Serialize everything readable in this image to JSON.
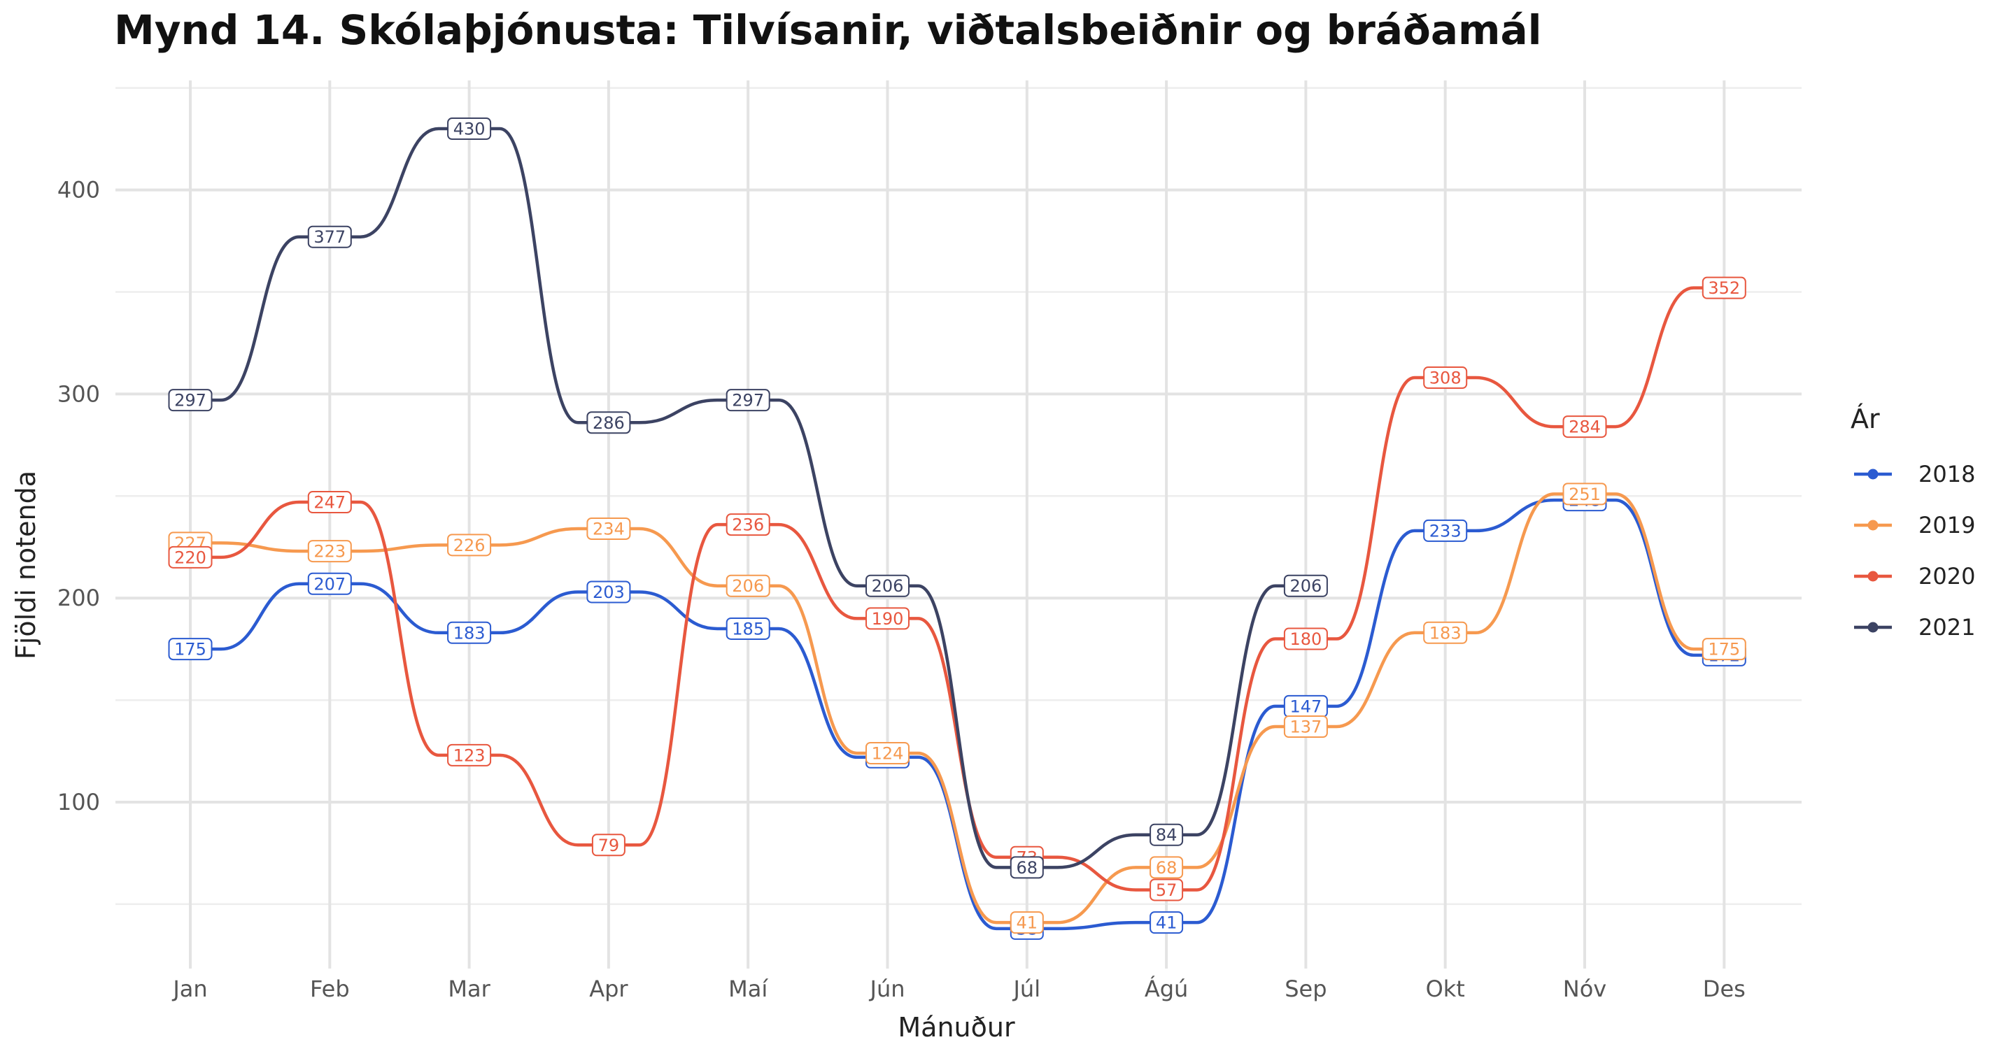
{
  "chart_data": {
    "type": "line",
    "title": "Mynd 14. Skólaþjónusta: Tilvísanir, viðtalsbeiðnir og bráðamál",
    "xlabel": "Mánuður",
    "ylabel": "Fjöldi notenda",
    "categories": [
      "Jan",
      "Feb",
      "Mar",
      "Apr",
      "Maí",
      "Jún",
      "Júl",
      "Ágú",
      "Sep",
      "Okt",
      "Nóv",
      "Des"
    ],
    "ylim": [
      25,
      455
    ],
    "yticks": [
      100,
      200,
      300,
      400
    ],
    "grid": true,
    "legend_title": "Ár",
    "legend_position": "right",
    "series": [
      {
        "name": "2018",
        "color": "#2b5bd1",
        "values": [
          175,
          207,
          183,
          203,
          185,
          122,
          38,
          41,
          147,
          233,
          248,
          172
        ]
      },
      {
        "name": "2019",
        "color": "#f6994f",
        "values": [
          227,
          223,
          226,
          234,
          206,
          124,
          41,
          68,
          137,
          183,
          251,
          175
        ]
      },
      {
        "name": "2020",
        "color": "#e8573f",
        "values": [
          220,
          247,
          123,
          79,
          236,
          190,
          73,
          57,
          180,
          308,
          284,
          352
        ]
      },
      {
        "name": "2021",
        "color": "#3c4363",
        "values": [
          297,
          377,
          430,
          286,
          297,
          206,
          68,
          84,
          206,
          null,
          null,
          null
        ]
      }
    ]
  }
}
